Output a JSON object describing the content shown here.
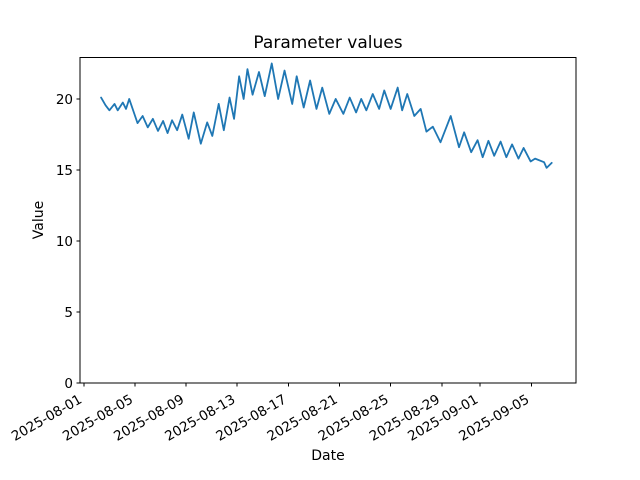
{
  "figure": {
    "background": "#ffffff",
    "text_color": "#000000",
    "spine_color": "#000000"
  },
  "chart_data": {
    "type": "line",
    "title": "Parameter values",
    "xlabel": "Date",
    "ylabel": "Value",
    "grid": false,
    "legend": false,
    "x_unit": "days since 2025-08-01",
    "xlim": [
      -0.3,
      38.5
    ],
    "ylim": [
      0,
      22.92
    ],
    "x_ticks": {
      "days": [
        0,
        4,
        8,
        12,
        16,
        20,
        24,
        28,
        31,
        35
      ],
      "labels": [
        "2025-08-01",
        "2025-08-05",
        "2025-08-09",
        "2025-08-13",
        "2025-08-17",
        "2025-08-21",
        "2025-08-25",
        "2025-08-29",
        "2025-09-01",
        "2025-09-05"
      ],
      "rotation_deg": 30
    },
    "y_ticks": [
      0,
      5,
      10,
      15,
      20
    ],
    "series": [
      {
        "name": "Parameter",
        "color": "#1f77b4",
        "line_width": 1.8,
        "x_days": [
          1.35,
          1.7,
          2.0,
          2.4,
          2.65,
          3.05,
          3.3,
          3.55,
          4.2,
          4.6,
          5.0,
          5.4,
          5.8,
          6.2,
          6.55,
          6.9,
          7.3,
          7.7,
          8.2,
          8.6,
          9.15,
          9.65,
          10.05,
          10.55,
          10.95,
          11.4,
          11.75,
          12.15,
          12.5,
          12.8,
          13.2,
          13.7,
          14.15,
          14.7,
          15.2,
          15.7,
          16.3,
          16.65,
          17.2,
          17.7,
          18.2,
          18.65,
          19.2,
          19.7,
          20.3,
          20.8,
          21.3,
          21.7,
          22.1,
          22.6,
          23.1,
          23.5,
          24.0,
          24.55,
          24.9,
          25.3,
          25.85,
          26.35,
          26.8,
          27.3,
          27.9,
          28.7,
          29.35,
          29.75,
          30.3,
          30.8,
          31.2,
          31.65,
          32.1,
          32.6,
          33.05,
          33.5,
          34.0,
          34.4,
          34.95,
          35.3,
          36.0,
          36.2,
          36.6
        ],
        "values": [
          20.1,
          19.55,
          19.2,
          19.65,
          19.2,
          19.75,
          19.3,
          20.0,
          18.3,
          18.8,
          18.0,
          18.6,
          17.75,
          18.45,
          17.6,
          18.5,
          17.8,
          18.9,
          17.2,
          19.05,
          16.85,
          18.35,
          17.4,
          19.65,
          17.8,
          20.1,
          18.6,
          21.6,
          20.0,
          22.1,
          20.3,
          21.9,
          20.2,
          22.5,
          20.0,
          22.0,
          19.65,
          21.6,
          19.4,
          21.3,
          19.3,
          20.8,
          18.95,
          20.0,
          18.95,
          20.1,
          19.05,
          20.0,
          19.2,
          20.35,
          19.3,
          20.6,
          19.3,
          20.8,
          19.2,
          20.35,
          18.8,
          19.3,
          17.7,
          18.05,
          16.95,
          18.8,
          16.6,
          17.65,
          16.25,
          17.1,
          15.9,
          17.05,
          16.0,
          17.0,
          15.9,
          16.8,
          15.8,
          16.55,
          15.6,
          15.8,
          15.55,
          15.15,
          15.5
        ]
      }
    ]
  }
}
